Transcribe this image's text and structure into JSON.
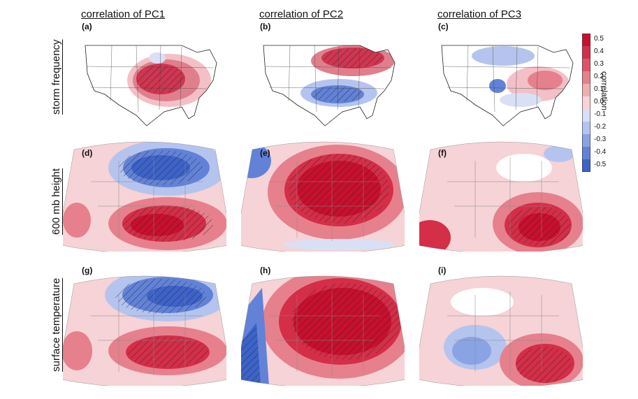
{
  "columns": [
    {
      "title": "correlation of PC1"
    },
    {
      "title": "correlation of PC2"
    },
    {
      "title": "correlation of PC3"
    }
  ],
  "rows": [
    {
      "label": "storm frequency"
    },
    {
      "label": "600 mb height"
    },
    {
      "label": "surface temperature"
    }
  ],
  "panels": [
    {
      "label": "(a)"
    },
    {
      "label": "(b)"
    },
    {
      "label": "(c)"
    },
    {
      "label": "(d)"
    },
    {
      "label": "(e)"
    },
    {
      "label": "(f)"
    },
    {
      "label": "(g)"
    },
    {
      "label": "(h)"
    },
    {
      "label": "(i)"
    }
  ],
  "colorbar": {
    "title": "correlation",
    "ticks": [
      "0.5",
      "0.4",
      "0.3",
      "0.2",
      "0.1",
      "0.0",
      "-0.1",
      "-0.2",
      "-0.3",
      "-0.4",
      "-0.5"
    ],
    "colors": [
      "#c8102e",
      "#d42e48",
      "#dd5468",
      "#e6808d",
      "#efadb4",
      "#f6d3d6",
      "#d9e0f5",
      "#b4c4ee",
      "#8aa3e3",
      "#6282d8",
      "#3d63c9"
    ]
  },
  "colors": {
    "positive": "#c8102e",
    "negative": "#3d63c9"
  }
}
